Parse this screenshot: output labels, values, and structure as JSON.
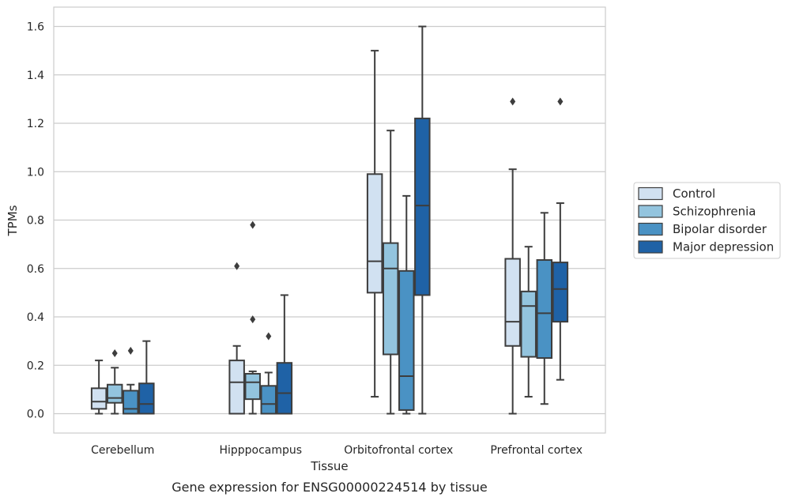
{
  "chart_data": {
    "type": "boxplot",
    "caption": "Gene expression for ENSG00000224514 by tissue",
    "xlabel": "Tissue",
    "ylabel": "TPMs",
    "ylim": [
      -0.08,
      1.68
    ],
    "yticks": [
      "0.0",
      "0.2",
      "0.4",
      "0.6",
      "0.8",
      "1.0",
      "1.2",
      "1.4",
      "1.6"
    ],
    "grid": true,
    "legend_position": "right",
    "categories": [
      "Cerebellum",
      "Hipppocampus",
      "Orbitofrontal cortex",
      "Prefrontal cortex"
    ],
    "series": [
      {
        "name": "Control",
        "color": "#d1e1f1",
        "boxes": [
          {
            "whisker_low": 0.0,
            "q1": 0.02,
            "median": 0.05,
            "q3": 0.105,
            "whisker_high": 0.22,
            "outliers": []
          },
          {
            "whisker_low": 0.0,
            "q1": 0.0,
            "median": 0.13,
            "q3": 0.22,
            "whisker_high": 0.28,
            "outliers": [
              0.61
            ]
          },
          {
            "whisker_low": 0.07,
            "q1": 0.5,
            "median": 0.63,
            "q3": 0.99,
            "whisker_high": 1.5,
            "outliers": []
          },
          {
            "whisker_low": 0.0,
            "q1": 0.28,
            "median": 0.38,
            "q3": 0.64,
            "whisker_high": 1.01,
            "outliers": [
              1.29
            ]
          }
        ]
      },
      {
        "name": "Schizophrenia",
        "color": "#93c4de",
        "boxes": [
          {
            "whisker_low": 0.0,
            "q1": 0.045,
            "median": 0.065,
            "q3": 0.12,
            "whisker_high": 0.19,
            "outliers": [
              0.25
            ]
          },
          {
            "whisker_low": 0.0,
            "q1": 0.06,
            "median": 0.13,
            "q3": 0.165,
            "whisker_high": 0.175,
            "outliers": [
              0.39,
              0.78
            ]
          },
          {
            "whisker_low": 0.0,
            "q1": 0.245,
            "median": 0.6,
            "q3": 0.705,
            "whisker_high": 1.17,
            "outliers": []
          },
          {
            "whisker_low": 0.07,
            "q1": 0.235,
            "median": 0.445,
            "q3": 0.505,
            "whisker_high": 0.69,
            "outliers": []
          }
        ]
      },
      {
        "name": "Bipolar disorder",
        "color": "#4a92c4",
        "boxes": [
          {
            "whisker_low": 0.0,
            "q1": 0.0,
            "median": 0.02,
            "q3": 0.095,
            "whisker_high": 0.12,
            "outliers": [
              0.26
            ]
          },
          {
            "whisker_low": 0.0,
            "q1": 0.0,
            "median": 0.04,
            "q3": 0.115,
            "whisker_high": 0.17,
            "outliers": [
              0.32
            ]
          },
          {
            "whisker_low": 0.0,
            "q1": 0.015,
            "median": 0.155,
            "q3": 0.59,
            "whisker_high": 0.9,
            "outliers": []
          },
          {
            "whisker_low": 0.04,
            "q1": 0.23,
            "median": 0.415,
            "q3": 0.635,
            "whisker_high": 0.83,
            "outliers": []
          }
        ]
      },
      {
        "name": "Major depression",
        "color": "#1f62a6",
        "boxes": [
          {
            "whisker_low": 0.0,
            "q1": 0.0,
            "median": 0.04,
            "q3": 0.125,
            "whisker_high": 0.3,
            "outliers": []
          },
          {
            "whisker_low": 0.0,
            "q1": 0.0,
            "median": 0.085,
            "q3": 0.21,
            "whisker_high": 0.49,
            "outliers": []
          },
          {
            "whisker_low": 0.0,
            "q1": 0.49,
            "median": 0.86,
            "q3": 1.22,
            "whisker_high": 1.6,
            "outliers": []
          },
          {
            "whisker_low": 0.14,
            "q1": 0.38,
            "median": 0.515,
            "q3": 0.625,
            "whisker_high": 0.87,
            "outliers": [
              1.29
            ]
          }
        ]
      }
    ]
  }
}
